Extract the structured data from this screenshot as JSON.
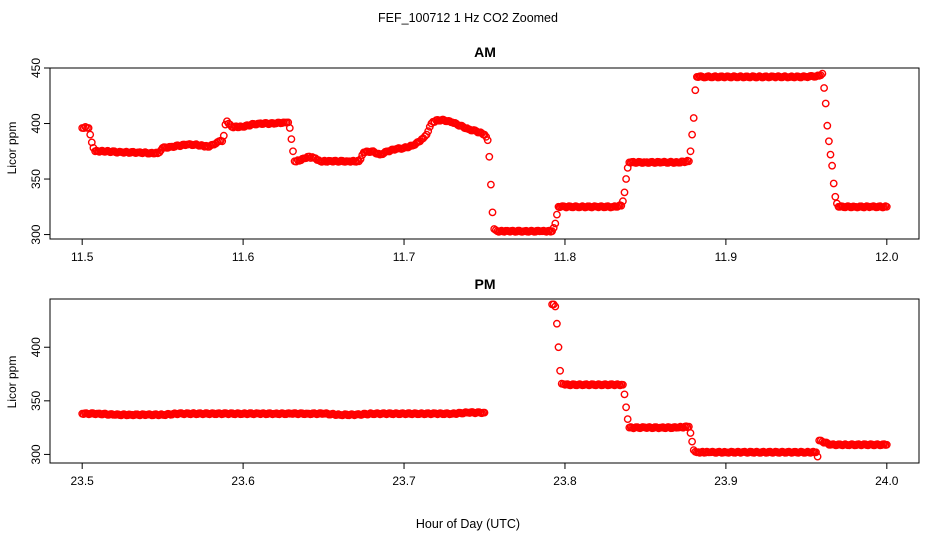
{
  "figure": {
    "title": "FEF_100712  1 Hz CO2 Zoomed",
    "xlabel": "Hour of Day (UTC)"
  },
  "chart_data": [
    {
      "type": "scatter",
      "title": "AM",
      "xlabel": "Hour of Day (UTC)",
      "ylabel": "Licor ppm",
      "xlim": [
        11.48,
        12.02
      ],
      "ylim": [
        296,
        450
      ],
      "xticks": [
        "11.5",
        "11.6",
        "11.7",
        "11.8",
        "11.9",
        "12.0"
      ],
      "yticks": [
        "300",
        "350",
        "400",
        "450"
      ],
      "marker_color": "#ff0000",
      "marker": "open-circle",
      "grid": false,
      "points": [
        [
          11.5,
          396
        ],
        [
          11.502,
          397
        ],
        [
          11.504,
          396
        ],
        [
          11.505,
          390
        ],
        [
          11.506,
          383
        ],
        [
          11.507,
          378
        ],
        [
          11.508,
          375
        ],
        [
          11.515,
          375
        ],
        [
          11.525,
          374
        ],
        [
          11.535,
          374
        ],
        [
          11.545,
          373
        ],
        [
          11.548,
          374
        ],
        [
          11.55,
          378
        ],
        [
          11.555,
          379
        ],
        [
          11.56,
          380
        ],
        [
          11.565,
          381
        ],
        [
          11.57,
          381
        ],
        [
          11.575,
          380
        ],
        [
          11.578,
          379
        ],
        [
          11.582,
          381
        ],
        [
          11.585,
          384
        ],
        [
          11.587,
          384
        ],
        [
          11.588,
          389
        ],
        [
          11.589,
          399
        ],
        [
          11.59,
          402
        ],
        [
          11.593,
          397
        ],
        [
          11.6,
          397
        ],
        [
          11.605,
          399
        ],
        [
          11.61,
          400
        ],
        [
          11.615,
          400
        ],
        [
          11.62,
          400
        ],
        [
          11.625,
          401
        ],
        [
          11.628,
          401
        ],
        [
          11.629,
          396
        ],
        [
          11.63,
          386
        ],
        [
          11.631,
          375
        ],
        [
          11.632,
          366
        ],
        [
          11.636,
          367
        ],
        [
          11.64,
          370
        ],
        [
          11.644,
          369
        ],
        [
          11.648,
          366
        ],
        [
          11.655,
          366
        ],
        [
          11.665,
          366
        ],
        [
          11.672,
          366
        ],
        [
          11.673,
          368
        ],
        [
          11.675,
          374
        ],
        [
          11.68,
          375
        ],
        [
          11.685,
          372
        ],
        [
          11.69,
          375
        ],
        [
          11.695,
          377
        ],
        [
          11.7,
          378
        ],
        [
          11.705,
          380
        ],
        [
          11.71,
          384
        ],
        [
          11.714,
          390
        ],
        [
          11.717,
          400
        ],
        [
          11.72,
          403
        ],
        [
          11.725,
          403
        ],
        [
          11.73,
          401
        ],
        [
          11.735,
          398
        ],
        [
          11.74,
          395
        ],
        [
          11.745,
          393
        ],
        [
          11.75,
          390
        ],
        [
          11.752,
          385
        ],
        [
          11.753,
          370
        ],
        [
          11.754,
          345
        ],
        [
          11.755,
          320
        ],
        [
          11.756,
          305
        ],
        [
          11.758,
          303
        ],
        [
          11.765,
          303
        ],
        [
          11.775,
          303
        ],
        [
          11.785,
          303
        ],
        [
          11.792,
          303
        ],
        [
          11.793,
          306
        ],
        [
          11.794,
          310
        ],
        [
          11.795,
          318
        ],
        [
          11.796,
          325
        ],
        [
          11.8,
          325
        ],
        [
          11.81,
          325
        ],
        [
          11.82,
          325
        ],
        [
          11.83,
          325
        ],
        [
          11.835,
          326
        ],
        [
          11.836,
          330
        ],
        [
          11.837,
          338
        ],
        [
          11.838,
          350
        ],
        [
          11.839,
          360
        ],
        [
          11.84,
          365
        ],
        [
          11.85,
          365
        ],
        [
          11.86,
          365
        ],
        [
          11.87,
          365
        ],
        [
          11.877,
          366
        ],
        [
          11.878,
          375
        ],
        [
          11.879,
          390
        ],
        [
          11.88,
          405
        ],
        [
          11.881,
          430
        ],
        [
          11.882,
          442
        ],
        [
          11.89,
          442
        ],
        [
          11.9,
          442
        ],
        [
          11.91,
          442
        ],
        [
          11.92,
          442
        ],
        [
          11.93,
          442
        ],
        [
          11.94,
          442
        ],
        [
          11.95,
          442
        ],
        [
          11.958,
          443
        ],
        [
          11.96,
          445
        ],
        [
          11.961,
          432
        ],
        [
          11.962,
          418
        ],
        [
          11.963,
          398
        ],
        [
          11.964,
          384
        ],
        [
          11.965,
          372
        ],
        [
          11.966,
          362
        ],
        [
          11.967,
          346
        ],
        [
          11.968,
          334
        ],
        [
          11.969,
          328
        ],
        [
          11.97,
          325
        ],
        [
          11.98,
          325
        ],
        [
          11.99,
          325
        ],
        [
          12.0,
          325
        ]
      ]
    },
    {
      "type": "scatter",
      "title": "PM",
      "xlabel": "Hour of Day (UTC)",
      "ylabel": "Licor ppm",
      "xlim": [
        23.48,
        24.02
      ],
      "ylim": [
        292,
        445
      ],
      "xticks": [
        "23.5",
        "23.6",
        "23.7",
        "23.8",
        "23.9",
        "24.0"
      ],
      "yticks": [
        "300",
        "350",
        "400"
      ],
      "marker_color": "#ff0000",
      "marker": "open-circle",
      "grid": false,
      "points": [
        [
          23.5,
          338
        ],
        [
          23.51,
          338
        ],
        [
          23.52,
          337
        ],
        [
          23.53,
          337
        ],
        [
          23.54,
          337
        ],
        [
          23.55,
          337
        ],
        [
          23.56,
          338
        ],
        [
          23.57,
          338
        ],
        [
          23.58,
          338
        ],
        [
          23.59,
          338
        ],
        [
          23.6,
          338
        ],
        [
          23.61,
          338
        ],
        [
          23.62,
          338
        ],
        [
          23.63,
          338
        ],
        [
          23.64,
          338
        ],
        [
          23.65,
          338
        ],
        [
          23.66,
          337
        ],
        [
          23.67,
          337
        ],
        [
          23.68,
          338
        ],
        [
          23.69,
          338
        ],
        [
          23.7,
          338
        ],
        [
          23.71,
          338
        ],
        [
          23.72,
          338
        ],
        [
          23.73,
          338
        ],
        [
          23.74,
          339
        ],
        [
          23.75,
          339
        ],
        [
          23.792,
          440
        ],
        [
          23.793,
          440
        ],
        [
          23.794,
          438
        ],
        [
          23.795,
          422
        ],
        [
          23.796,
          400
        ],
        [
          23.797,
          378
        ],
        [
          23.798,
          366
        ],
        [
          23.8,
          365
        ],
        [
          23.81,
          365
        ],
        [
          23.82,
          365
        ],
        [
          23.83,
          365
        ],
        [
          23.836,
          365
        ],
        [
          23.837,
          356
        ],
        [
          23.838,
          344
        ],
        [
          23.839,
          333
        ],
        [
          23.84,
          325
        ],
        [
          23.85,
          325
        ],
        [
          23.86,
          325
        ],
        [
          23.87,
          325
        ],
        [
          23.877,
          326
        ],
        [
          23.878,
          320
        ],
        [
          23.879,
          312
        ],
        [
          23.88,
          304
        ],
        [
          23.882,
          302
        ],
        [
          23.89,
          302
        ],
        [
          23.9,
          302
        ],
        [
          23.91,
          302
        ],
        [
          23.92,
          302
        ],
        [
          23.93,
          302
        ],
        [
          23.94,
          302
        ],
        [
          23.95,
          302
        ],
        [
          23.956,
          302
        ],
        [
          23.957,
          298
        ],
        [
          23.958,
          313
        ],
        [
          23.96,
          312
        ],
        [
          23.965,
          309
        ],
        [
          23.975,
          309
        ],
        [
          23.985,
          309
        ],
        [
          23.995,
          309
        ],
        [
          24.0,
          309
        ]
      ]
    }
  ]
}
